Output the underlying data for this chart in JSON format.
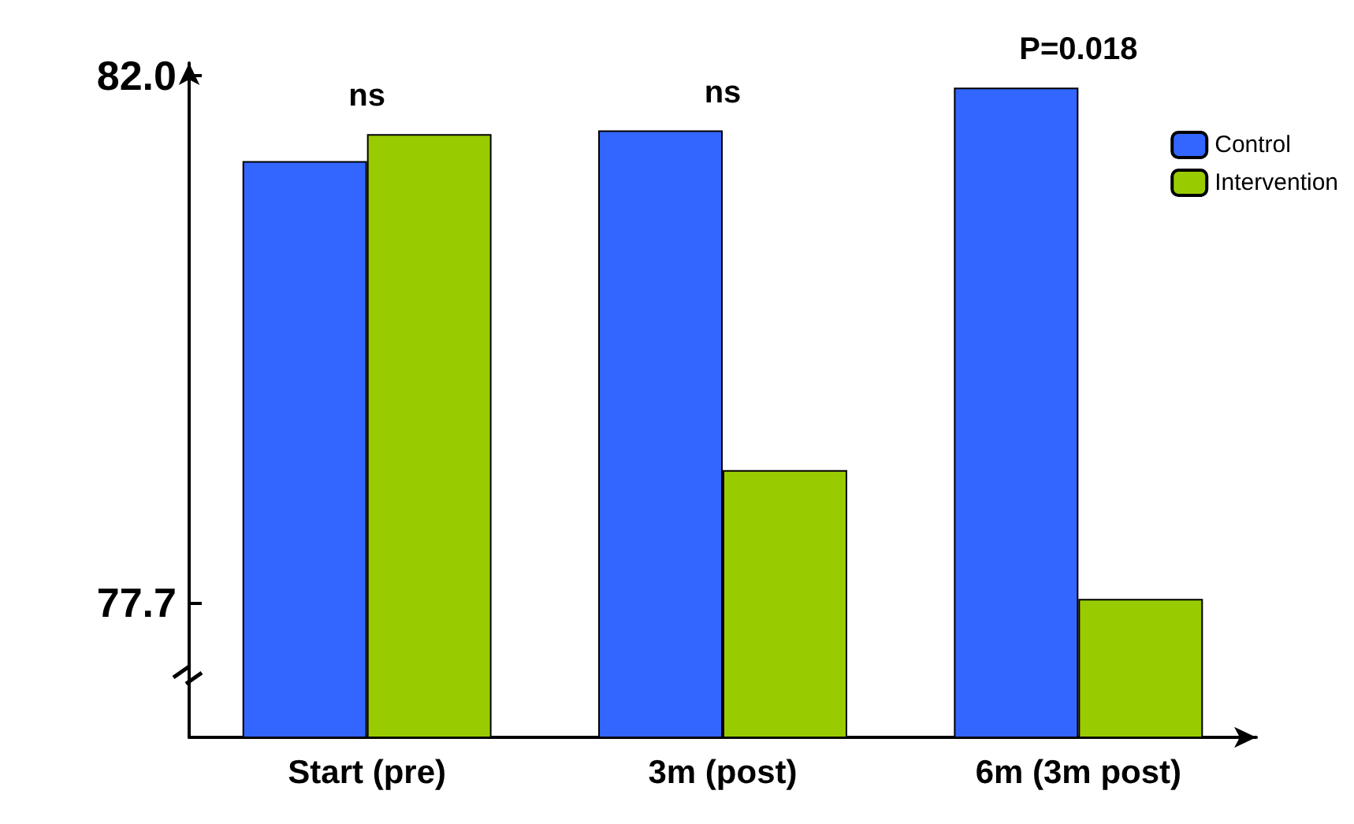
{
  "chart_data": {
    "type": "bar",
    "categories": [
      "Start (pre)",
      "3m (post)",
      "6m (3m post)"
    ],
    "series": [
      {
        "name": "Control",
        "color": "#3366ff",
        "values": [
          81.3,
          81.55,
          81.9
        ]
      },
      {
        "name": "Intervention",
        "color": "#99cc00",
        "values": [
          81.52,
          78.78,
          77.73
        ]
      }
    ],
    "ylim": [
      76.6,
      82.1
    ],
    "yticks": [
      {
        "value": 82,
        "label": "82.0"
      },
      {
        "value": 77.7,
        "label": "77.7"
      }
    ],
    "annotations": [
      "ns",
      "ns",
      "P=0.018"
    ],
    "grid": false,
    "legend": "top right"
  }
}
